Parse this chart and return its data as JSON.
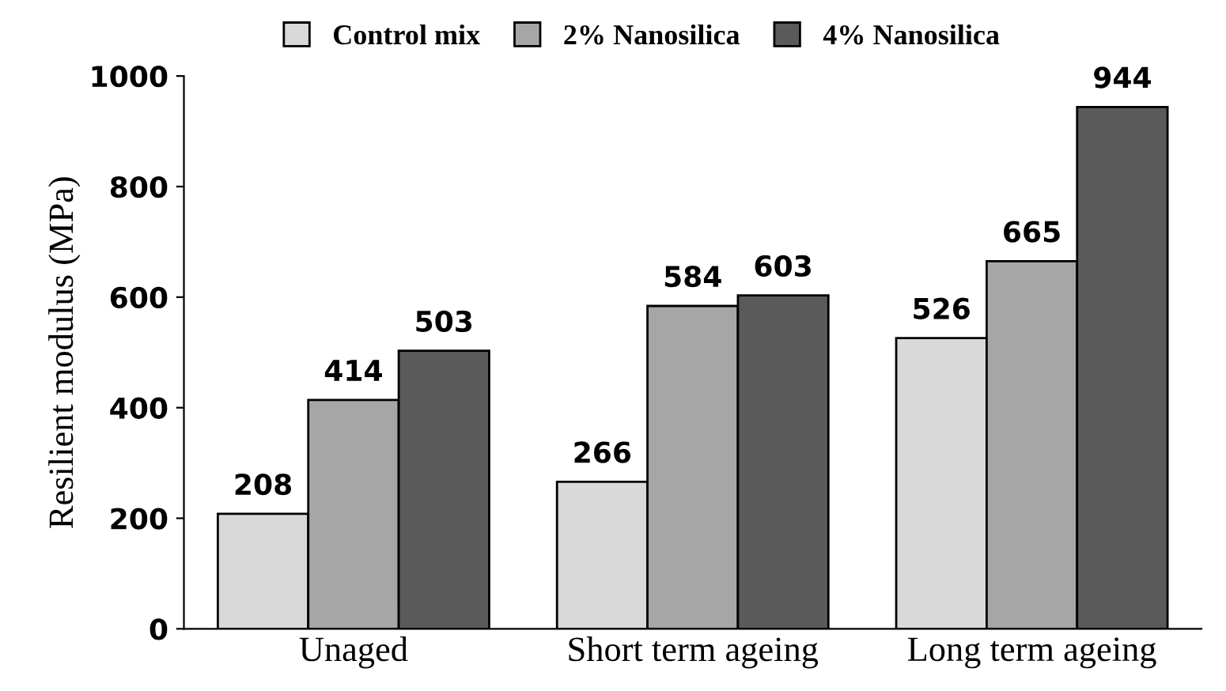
{
  "chart_data": {
    "type": "bar",
    "ylabel": "Resilient modulus (MPa)",
    "categories": [
      "Unaged",
      "Short term ageing",
      "Long term ageing"
    ],
    "series": [
      {
        "name": "Control mix",
        "color": "#d9d9d9",
        "values": [
          208,
          266,
          526
        ]
      },
      {
        "name": "2% Nanosilica",
        "color": "#a6a6a6",
        "values": [
          414,
          584,
          665
        ]
      },
      {
        "name": "4% Nanosilica",
        "color": "#5a5a5a",
        "values": [
          503,
          603,
          944
        ]
      }
    ],
    "ylim": [
      0,
      1000
    ],
    "yticks": [
      0,
      200,
      400,
      600,
      800,
      1000
    ],
    "data_labels": true,
    "legend": "top",
    "grid": false
  }
}
